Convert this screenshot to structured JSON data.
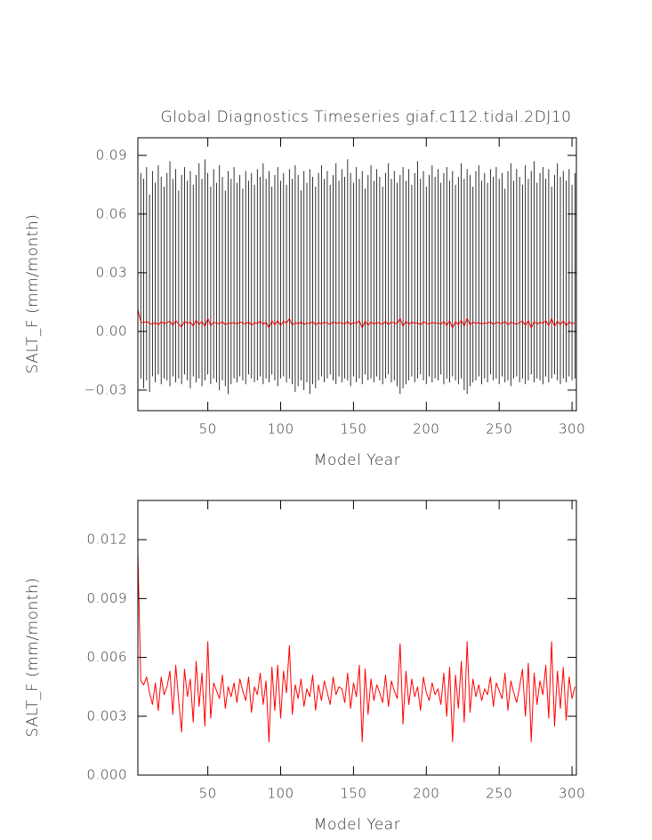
{
  "chart_data": [
    {
      "type": "line",
      "title": "Global Diagnostics Timeseries giaf.c112.tidal.2DJ10",
      "xlabel": "Model Year",
      "ylabel": "SALT_F (mm/month)",
      "xlim": [
        2,
        303
      ],
      "xticks": [
        50,
        100,
        150,
        200,
        250,
        300
      ],
      "ylim": [
        -0.0405,
        0.099
      ],
      "yticks": [
        {
          "value": -0.03,
          "label": "−0.03"
        },
        {
          "value": 0,
          "label": "0.00"
        },
        0.03,
        0.06,
        0.09
      ],
      "x": [
        2,
        4,
        6,
        8,
        10,
        12,
        14,
        16,
        18,
        20,
        22,
        24,
        26,
        28,
        30,
        32,
        34,
        36,
        38,
        40,
        42,
        44,
        46,
        48,
        50,
        52,
        54,
        56,
        58,
        60,
        62,
        64,
        66,
        68,
        70,
        72,
        74,
        76,
        78,
        80,
        82,
        84,
        86,
        88,
        90,
        92,
        94,
        96,
        98,
        100,
        102,
        104,
        106,
        108,
        110,
        112,
        114,
        116,
        118,
        120,
        122,
        124,
        126,
        128,
        130,
        132,
        134,
        136,
        138,
        140,
        142,
        144,
        146,
        148,
        150,
        152,
        154,
        156,
        158,
        160,
        162,
        164,
        166,
        168,
        170,
        172,
        174,
        176,
        178,
        180,
        182,
        184,
        186,
        188,
        190,
        192,
        194,
        196,
        198,
        200,
        202,
        204,
        206,
        208,
        210,
        212,
        214,
        216,
        218,
        220,
        222,
        224,
        226,
        228,
        230,
        232,
        234,
        236,
        238,
        240,
        242,
        244,
        246,
        248,
        250,
        252,
        254,
        256,
        258,
        260,
        262,
        264,
        266,
        268,
        270,
        272,
        274,
        276,
        278,
        280,
        282,
        284,
        286,
        288,
        290,
        292,
        294,
        296,
        298,
        300,
        302
      ],
      "series": [
        {
          "color": "#000000",
          "high": [
            0.083,
            0.081,
            0.078,
            0.084,
            0.07,
            0.082,
            0.076,
            0.085,
            0.079,
            0.074,
            0.081,
            0.087,
            0.078,
            0.083,
            0.072,
            0.08,
            0.084,
            0.077,
            0.082,
            0.075,
            0.08,
            0.086,
            0.078,
            0.088,
            0.081,
            0.074,
            0.083,
            0.076,
            0.085,
            0.079,
            0.072,
            0.082,
            0.078,
            0.084,
            0.076,
            0.08,
            0.073,
            0.082,
            0.077,
            0.081,
            0.075,
            0.083,
            0.079,
            0.086,
            0.078,
            0.082,
            0.074,
            0.08,
            0.084,
            0.077,
            0.081,
            0.075,
            0.083,
            0.078,
            0.085,
            0.08,
            0.072,
            0.082,
            0.076,
            0.083,
            0.079,
            0.074,
            0.081,
            0.085,
            0.078,
            0.082,
            0.075,
            0.08,
            0.086,
            0.077,
            0.083,
            0.079,
            0.088,
            0.081,
            0.076,
            0.084,
            0.078,
            0.082,
            0.073,
            0.08,
            0.085,
            0.077,
            0.083,
            0.079,
            0.074,
            0.081,
            0.086,
            0.078,
            0.082,
            0.076,
            0.08,
            0.084,
            0.077,
            0.083,
            0.075,
            0.081,
            0.087,
            0.078,
            0.082,
            0.074,
            0.08,
            0.085,
            0.079,
            0.083,
            0.076,
            0.081,
            0.084,
            0.077,
            0.082,
            0.075,
            0.079,
            0.086,
            0.078,
            0.083,
            0.08,
            0.074,
            0.082,
            0.085,
            0.077,
            0.081,
            0.076,
            0.083,
            0.079,
            0.084,
            0.078,
            0.081,
            0.073,
            0.082,
            0.086,
            0.077,
            0.083,
            0.079,
            0.075,
            0.085,
            0.078,
            0.082,
            0.087,
            0.076,
            0.081,
            0.084,
            0.078,
            0.083,
            0.074,
            0.08,
            0.086,
            0.079,
            0.082,
            0.077,
            0.083,
            0.075,
            0.081
          ],
          "low": [
            -0.012,
            -0.024,
            -0.029,
            -0.025,
            -0.031,
            -0.023,
            -0.026,
            -0.022,
            -0.027,
            -0.024,
            -0.025,
            -0.028,
            -0.023,
            -0.026,
            -0.024,
            -0.027,
            -0.022,
            -0.025,
            -0.029,
            -0.023,
            -0.026,
            -0.024,
            -0.028,
            -0.025,
            -0.022,
            -0.027,
            -0.024,
            -0.026,
            -0.03,
            -0.025,
            -0.028,
            -0.032,
            -0.027,
            -0.024,
            -0.026,
            -0.023,
            -0.025,
            -0.027,
            -0.022,
            -0.024,
            -0.026,
            -0.025,
            -0.023,
            -0.027,
            -0.024,
            -0.026,
            -0.022,
            -0.025,
            -0.028,
            -0.024,
            -0.023,
            -0.026,
            -0.024,
            -0.027,
            -0.031,
            -0.028,
            -0.025,
            -0.03,
            -0.026,
            -0.032,
            -0.027,
            -0.029,
            -0.025,
            -0.023,
            -0.026,
            -0.024,
            -0.022,
            -0.025,
            -0.027,
            -0.023,
            -0.026,
            -0.024,
            -0.025,
            -0.028,
            -0.023,
            -0.026,
            -0.024,
            -0.027,
            -0.022,
            -0.025,
            -0.024,
            -0.026,
            -0.023,
            -0.025,
            -0.027,
            -0.024,
            -0.022,
            -0.026,
            -0.025,
            -0.028,
            -0.032,
            -0.029,
            -0.027,
            -0.025,
            -0.023,
            -0.026,
            -0.024,
            -0.022,
            -0.025,
            -0.027,
            -0.023,
            -0.026,
            -0.024,
            -0.025,
            -0.022,
            -0.027,
            -0.024,
            -0.026,
            -0.023,
            -0.025,
            -0.027,
            -0.024,
            -0.03,
            -0.032,
            -0.028,
            -0.026,
            -0.025,
            -0.023,
            -0.027,
            -0.024,
            -0.026,
            -0.022,
            -0.025,
            -0.024,
            -0.027,
            -0.023,
            -0.026,
            -0.025,
            -0.028,
            -0.024,
            -0.023,
            -0.026,
            -0.024,
            -0.027,
            -0.025,
            -0.022,
            -0.026,
            -0.024,
            -0.025,
            -0.027,
            -0.023,
            -0.026,
            -0.024,
            -0.022,
            -0.025,
            -0.027,
            -0.024,
            -0.026,
            -0.023,
            -0.025,
            -0.024
          ]
        },
        {
          "color": "#ff0000",
          "values": [
            0.0113,
            0.0048,
            0.0046,
            0.005,
            0.0042,
            0.0036,
            0.0047,
            0.0033,
            0.005,
            0.0041,
            0.0045,
            0.0053,
            0.0031,
            0.0056,
            0.0038,
            0.0022,
            0.0054,
            0.004,
            0.0049,
            0.0027,
            0.0058,
            0.0035,
            0.0052,
            0.0025,
            0.0068,
            0.0029,
            0.0047,
            0.0043,
            0.0039,
            0.0051,
            0.0034,
            0.0045,
            0.004,
            0.0047,
            0.0037,
            0.0049,
            0.0043,
            0.0038,
            0.005,
            0.0032,
            0.0045,
            0.0041,
            0.0052,
            0.0036,
            0.0048,
            0.0017,
            0.0055,
            0.0033,
            0.0056,
            0.0029,
            0.0053,
            0.0042,
            0.0066,
            0.0031,
            0.0046,
            0.0039,
            0.0049,
            0.0035,
            0.0044,
            0.004,
            0.0051,
            0.0033,
            0.0046,
            0.0038,
            0.0048,
            0.0042,
            0.0036,
            0.005,
            0.0041,
            0.0045,
            0.0044,
            0.0037,
            0.0052,
            0.0034,
            0.0047,
            0.004,
            0.0056,
            0.0017,
            0.0054,
            0.0031,
            0.0049,
            0.0038,
            0.0046,
            0.0042,
            0.0037,
            0.0051,
            0.0035,
            0.0048,
            0.0043,
            0.0039,
            0.0067,
            0.0026,
            0.0053,
            0.0036,
            0.0049,
            0.004,
            0.0045,
            0.0033,
            0.005,
            0.0042,
            0.0038,
            0.0047,
            0.0041,
            0.0044,
            0.0036,
            0.0052,
            0.003,
            0.0055,
            0.0017,
            0.0051,
            0.0034,
            0.0058,
            0.0027,
            0.0068,
            0.0032,
            0.0049,
            0.004,
            0.0046,
            0.0038,
            0.0044,
            0.0041,
            0.005,
            0.0035,
            0.0047,
            0.0043,
            0.0039,
            0.0052,
            0.0033,
            0.0048,
            0.0042,
            0.0037,
            0.0045,
            0.0054,
            0.003,
            0.0057,
            0.0017,
            0.0052,
            0.0036,
            0.0048,
            0.0041,
            0.0056,
            0.0029,
            0.0068,
            0.0025,
            0.0053,
            0.0034,
            0.0055,
            0.0028,
            0.005,
            0.0039,
            0.0045
          ]
        }
      ]
    },
    {
      "type": "line",
      "xlabel": "Model Year",
      "ylabel": "SALT_F (mm/month)",
      "xlim": [
        2,
        303
      ],
      "xticks": [
        50,
        100,
        150,
        200,
        250,
        300
      ],
      "ylim": [
        0,
        0.014
      ],
      "yticks": [
        {
          "value": 0,
          "label": "0.000"
        },
        0.003,
        0.006,
        0.009,
        0.012
      ],
      "x": [
        2,
        4,
        6,
        8,
        10,
        12,
        14,
        16,
        18,
        20,
        22,
        24,
        26,
        28,
        30,
        32,
        34,
        36,
        38,
        40,
        42,
        44,
        46,
        48,
        50,
        52,
        54,
        56,
        58,
        60,
        62,
        64,
        66,
        68,
        70,
        72,
        74,
        76,
        78,
        80,
        82,
        84,
        86,
        88,
        90,
        92,
        94,
        96,
        98,
        100,
        102,
        104,
        106,
        108,
        110,
        112,
        114,
        116,
        118,
        120,
        122,
        124,
        126,
        128,
        130,
        132,
        134,
        136,
        138,
        140,
        142,
        144,
        146,
        148,
        150,
        152,
        154,
        156,
        158,
        160,
        162,
        164,
        166,
        168,
        170,
        172,
        174,
        176,
        178,
        180,
        182,
        184,
        186,
        188,
        190,
        192,
        194,
        196,
        198,
        200,
        202,
        204,
        206,
        208,
        210,
        212,
        214,
        216,
        218,
        220,
        222,
        224,
        226,
        228,
        230,
        232,
        234,
        236,
        238,
        240,
        242,
        244,
        246,
        248,
        250,
        252,
        254,
        256,
        258,
        260,
        262,
        264,
        266,
        268,
        270,
        272,
        274,
        276,
        278,
        280,
        282,
        284,
        286,
        288,
        290,
        292,
        294,
        296,
        298,
        300,
        302
      ],
      "series": [
        {
          "color": "#ff0000",
          "values": [
            0.0113,
            0.0048,
            0.0046,
            0.005,
            0.0042,
            0.0036,
            0.0047,
            0.0033,
            0.005,
            0.0041,
            0.0045,
            0.0053,
            0.0031,
            0.0056,
            0.0038,
            0.0022,
            0.0054,
            0.004,
            0.0049,
            0.0027,
            0.0058,
            0.0035,
            0.0052,
            0.0025,
            0.0068,
            0.0029,
            0.0047,
            0.0043,
            0.0039,
            0.0051,
            0.0034,
            0.0045,
            0.004,
            0.0047,
            0.0037,
            0.0049,
            0.0043,
            0.0038,
            0.005,
            0.0032,
            0.0045,
            0.0041,
            0.0052,
            0.0036,
            0.0048,
            0.0017,
            0.0055,
            0.0033,
            0.0056,
            0.0029,
            0.0053,
            0.0042,
            0.0066,
            0.0031,
            0.0046,
            0.0039,
            0.0049,
            0.0035,
            0.0044,
            0.004,
            0.0051,
            0.0033,
            0.0046,
            0.0038,
            0.0048,
            0.0042,
            0.0036,
            0.005,
            0.0041,
            0.0045,
            0.0044,
            0.0037,
            0.0052,
            0.0034,
            0.0047,
            0.004,
            0.0056,
            0.0017,
            0.0054,
            0.0031,
            0.0049,
            0.0038,
            0.0046,
            0.0042,
            0.0037,
            0.0051,
            0.0035,
            0.0048,
            0.0043,
            0.0039,
            0.0067,
            0.0026,
            0.0053,
            0.0036,
            0.0049,
            0.004,
            0.0045,
            0.0033,
            0.005,
            0.0042,
            0.0038,
            0.0047,
            0.0041,
            0.0044,
            0.0036,
            0.0052,
            0.003,
            0.0055,
            0.0017,
            0.0051,
            0.0034,
            0.0058,
            0.0027,
            0.0068,
            0.0032,
            0.0049,
            0.004,
            0.0046,
            0.0038,
            0.0044,
            0.0041,
            0.005,
            0.0035,
            0.0047,
            0.0043,
            0.0039,
            0.0052,
            0.0033,
            0.0048,
            0.0042,
            0.0037,
            0.0045,
            0.0054,
            0.003,
            0.0057,
            0.0017,
            0.0052,
            0.0036,
            0.0048,
            0.0041,
            0.0056,
            0.0029,
            0.0068,
            0.0025,
            0.0053,
            0.0034,
            0.0055,
            0.0028,
            0.005,
            0.0039,
            0.0045
          ]
        }
      ]
    }
  ]
}
